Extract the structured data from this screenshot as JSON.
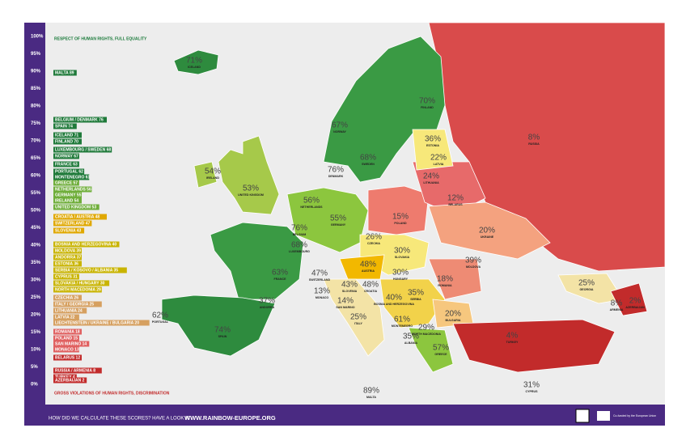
{
  "header": {
    "top": "RESPECT OF HUMAN RIGHTS, FULL EQUALITY",
    "bottom": "GROSS VIOLATIONS OF HUMAN RIGHTS, DISCRIMINATION"
  },
  "scale": [
    "100%",
    "95%",
    "90%",
    "85%",
    "80%",
    "75%",
    "70%",
    "65%",
    "60%",
    "55%",
    "50%",
    "45%",
    "40%",
    "35%",
    "30%",
    "25%",
    "20%",
    "15%",
    "10%",
    "5%",
    "0%"
  ],
  "ranking": [
    "MALTA 89",
    "BELGIUM / DENMARK 76",
    "SPAIN 74",
    "ICELAND 71",
    "FINLAND 70",
    "LUXEMBOURG / SWEDEN 68",
    "NORWAY 67",
    "FRANCE 63",
    "PORTUGAL 62",
    "MONTENEGRO 61",
    "GREECE 57",
    "NETHERLANDS 56",
    "GERMANY 55",
    "IRELAND 54",
    "UNITED KINGDOM 53",
    "CROATIA / AUSTRIA 48",
    "SWITZERLAND 47",
    "SLOVENIA 43",
    "BOSNIA AND HERZEGOVINA 40",
    "MOLDOVA 39",
    "ANDORRA 37",
    "ESTONIA 36",
    "SERBIA / KOSOVO / ALBANIA 35",
    "CYPRUS 31",
    "SLOVAKIA / HUNGARY 30",
    "NORTH MACEDONIA 29",
    "CZECHIA 26",
    "ITALY / GEORGIA 25",
    "LITHUANIA 24",
    "LATVIA 22",
    "LIECHTENSTEIN / UKRAINE / BULGARIA 20",
    "ROMANIA 18",
    "POLAND 15",
    "SAN MARINO 14",
    "MONACO 13",
    "BELARUS 12",
    "RUSSIA / ARMENIA 8",
    "TURKEY 4",
    "AZERBAIJAN 2"
  ],
  "map_labels": [
    {
      "score": "71%",
      "country": "ICELAND"
    },
    {
      "score": "67%",
      "country": "NORWAY"
    },
    {
      "score": "68%",
      "country": "SWEDEN"
    },
    {
      "score": "70%",
      "country": "FINLAND"
    },
    {
      "score": "8%",
      "country": "RUSSIA"
    },
    {
      "score": "36%",
      "country": "ESTONIA"
    },
    {
      "score": "22%",
      "country": "LATVIA"
    },
    {
      "score": "24%",
      "country": "LITHUANIA"
    },
    {
      "score": "76%",
      "country": "DENMARK"
    },
    {
      "score": "54%",
      "country": "IRELAND"
    },
    {
      "score": "53%",
      "country": "UNITED KINGDOM"
    },
    {
      "score": "12%",
      "country": "BELARUS"
    },
    {
      "score": "56%",
      "country": "NETHERLANDS"
    },
    {
      "score": "15%",
      "country": "POLAND"
    },
    {
      "score": "55%",
      "country": "GERMANY"
    },
    {
      "score": "20%",
      "country": "UKRAINE"
    },
    {
      "score": "76%",
      "country": "BELGIUM"
    },
    {
      "score": "68%",
      "country": "LUXEMBOURG"
    },
    {
      "score": "26%",
      "country": "CZECHIA"
    },
    {
      "score": "30%",
      "country": "SLOVAKIA"
    },
    {
      "score": "39%",
      "country": "MOLDOVA"
    },
    {
      "score": "47%",
      "country": "SWITZERLAND"
    },
    {
      "score": "48%",
      "country": "AUSTRIA"
    },
    {
      "score": "30%",
      "country": "HUNGARY"
    },
    {
      "score": "63%",
      "country": "FRANCE"
    },
    {
      "score": "18%",
      "country": "ROMANIA"
    },
    {
      "score": "43%",
      "country": "SLOVENIA"
    },
    {
      "score": "48%",
      "country": "CROATIA"
    },
    {
      "score": "13%",
      "country": "MONACO"
    },
    {
      "score": "14%",
      "country": "SAN MARINO"
    },
    {
      "score": "25%",
      "country": "ITALY"
    },
    {
      "score": "40%",
      "country": "BOSNIA AND HERZEGOVINA"
    },
    {
      "score": "35%",
      "country": "SERBIA"
    },
    {
      "score": "61%",
      "country": "MONTENEGRO"
    },
    {
      "score": "20%",
      "country": "BULGARIA"
    },
    {
      "score": "25%",
      "country": "GEORGIA"
    },
    {
      "score": "8%",
      "country": "ARMENIA"
    },
    {
      "score": "2%",
      "country": "AZERBAIJAN"
    },
    {
      "score": "37%",
      "country": "ANDORRA"
    },
    {
      "score": "62%",
      "country": "PORTUGAL"
    },
    {
      "score": "74%",
      "country": "SPAIN"
    },
    {
      "score": "35%",
      "country": "ALBANIA"
    },
    {
      "score": "29%",
      "country": "NORTH MACEDONIA"
    },
    {
      "score": "57%",
      "country": "GREECE"
    },
    {
      "score": "4%",
      "country": "TURKEY"
    },
    {
      "score": "89%",
      "country": "MALTA"
    },
    {
      "score": "31%",
      "country": "CYPRUS"
    }
  ],
  "footer": {
    "question": "HOW DID WE CALCULATE THESE SCORES? HAVE A LOOK AT",
    "url": "WWW.RAINBOW-EUROPE.ORG",
    "funding": "Co-funded by the European Union"
  }
}
